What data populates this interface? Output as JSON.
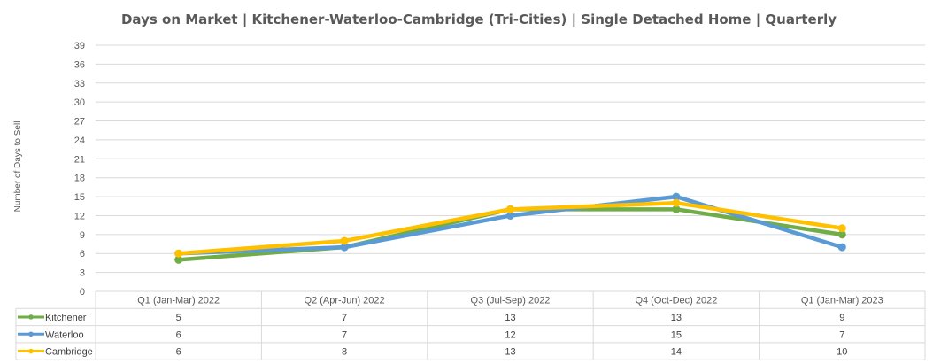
{
  "chart_data": {
    "type": "line",
    "title": "Days on Market | Kitchener-Waterloo-Cambridge (Tri-Cities) | Single Detached Home | Quarterly",
    "ylabel": "Number of Days to Sell",
    "xlabel": "",
    "ylim": [
      0,
      39
    ],
    "yticks": [
      0,
      3,
      6,
      9,
      12,
      15,
      18,
      21,
      24,
      27,
      30,
      33,
      36,
      39
    ],
    "categories": [
      "Q1 (Jan-Mar) 2022",
      "Q2 (Apr-Jun) 2022",
      "Q3 (Jul-Sep) 2022",
      "Q4 (Oct-Dec) 2022",
      "Q1 (Jan-Mar) 2023"
    ],
    "series": [
      {
        "name": "Kitchener",
        "values": [
          5,
          7,
          13,
          13,
          9
        ],
        "color": "#70ad47"
      },
      {
        "name": "Waterloo",
        "values": [
          6,
          7,
          12,
          15,
          7
        ],
        "color": "#5b9bd5"
      },
      {
        "name": "Cambridge",
        "values": [
          6,
          8,
          13,
          14,
          10
        ],
        "color": "#ffc000"
      }
    ],
    "grid": true,
    "legend": "data-table"
  }
}
